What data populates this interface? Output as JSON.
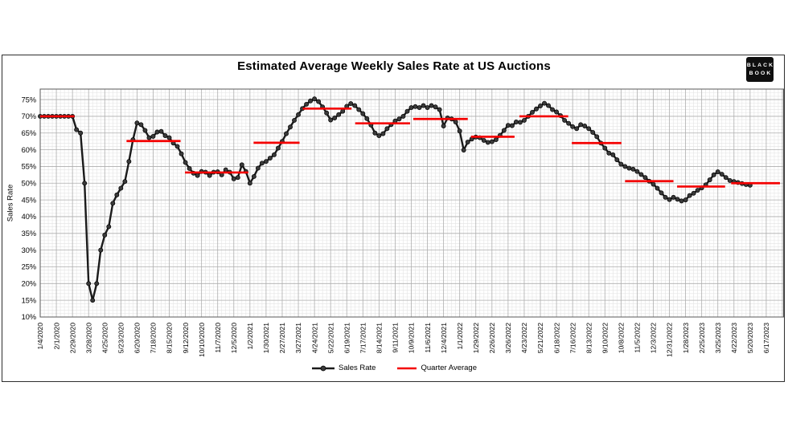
{
  "header": {
    "title": "Estimated Average Weekly Sales Rate at US Auctions"
  },
  "logo": {
    "line1": "BLACK",
    "line2": "BOOK"
  },
  "legend": {
    "sales_rate": "Sales Rate",
    "quarter_average": "Quarter Average"
  },
  "y_axis_title": "Sales Rate",
  "colors": {
    "line": "#1a1a1a",
    "marker_fill": "#3a3a3a",
    "marker_stroke": "#000000",
    "quarter_average": "#f40000",
    "grid_minor": "#e4e4e4",
    "grid_major": "#aeaeae",
    "plot_border": "#5a5a5a",
    "logo_bg": "#0f0f0f"
  },
  "chart_data": {
    "type": "line",
    "title": "Estimated Average Weekly Sales Rate at US Auctions",
    "xlabel": "",
    "ylabel": "Sales Rate",
    "ylim": [
      10,
      78.1
    ],
    "grid": "minor weekly / 1% + major 4-weekly / 5%",
    "legend_position": "bottom-center",
    "y_tick_labels": [
      "10%",
      "15%",
      "20%",
      "25%",
      "30%",
      "35%",
      "40%",
      "45%",
      "50%",
      "55%",
      "60%",
      "65%",
      "70%",
      "75%"
    ],
    "x_start_date": "1/4/2020",
    "x_interval": "weekly",
    "x_ticks_every_weeks": 4,
    "x_tick_labels": [
      "1/4/2020",
      "2/1/2020",
      "2/29/2020",
      "3/28/2020",
      "4/25/2020",
      "5/23/2020",
      "6/20/2020",
      "7/18/2020",
      "8/15/2020",
      "9/12/2020",
      "10/10/2020",
      "11/7/2020",
      "12/5/2020",
      "1/2/2021",
      "1/30/2021",
      "2/27/2021",
      "3/27/2021",
      "4/24/2021",
      "5/22/2021",
      "6/19/2021",
      "7/17/2021",
      "8/14/2021",
      "9/11/2021",
      "10/9/2021",
      "11/6/2021",
      "12/4/2021",
      "1/1/2022",
      "1/29/2022",
      "2/26/2022",
      "3/26/2022",
      "4/23/2022",
      "5/21/2022",
      "6/18/2022",
      "7/16/2022",
      "8/13/2022",
      "9/10/2022",
      "10/8/2022",
      "11/5/2022",
      "12/3/2022",
      "12/31/2022",
      "1/28/2023",
      "2/25/2023",
      "3/25/2023",
      "4/22/2023",
      "5/20/2023",
      "6/17/2023"
    ],
    "series": [
      {
        "name": "Sales Rate",
        "style": "line+markers",
        "color": "#1a1a1a",
        "values_pct": [
          70,
          70,
          70,
          70,
          70,
          70,
          70,
          70,
          70,
          66,
          65,
          50,
          20,
          15,
          20,
          30,
          34.5,
          37,
          44,
          46.5,
          48.5,
          50.5,
          56.5,
          63,
          68,
          67.5,
          65.8,
          63.6,
          64,
          65.3,
          65.5,
          64.2,
          63.6,
          62,
          61,
          58.8,
          56.2,
          54.4,
          53,
          52.3,
          53.5,
          53.3,
          52.3,
          53.3,
          53.4,
          52.5,
          54,
          53.3,
          51.3,
          51.7,
          55.5,
          53.5,
          50,
          52,
          54.5,
          56,
          56.5,
          57.5,
          58.5,
          60.5,
          62.5,
          64.8,
          66.8,
          68.8,
          70.5,
          72.3,
          73.6,
          74.6,
          75.2,
          74.4,
          72.8,
          71,
          68.9,
          69.5,
          70.5,
          71.5,
          73,
          73.8,
          73.2,
          72,
          70.8,
          69.3,
          67.4,
          65,
          64.2,
          64.8,
          66.3,
          67.5,
          68.6,
          69.2,
          70,
          71.5,
          72.6,
          72.9,
          72.6,
          73.2,
          72.6,
          73.2,
          72.8,
          72,
          67.1,
          69.5,
          69.2,
          68.3,
          65.6,
          59.9,
          62.3,
          63.2,
          63.8,
          63.6,
          62.8,
          62.2,
          62.4,
          63,
          64.3,
          65.8,
          67.3,
          67.2,
          68.3,
          68.2,
          68.8,
          70,
          71.2,
          72.2,
          73.1,
          73.9,
          73.2,
          72,
          71.3,
          70.2,
          68.8,
          67.9,
          66.9,
          66.3,
          67.5,
          67.1,
          66.3,
          65.2,
          63.9,
          62,
          60.5,
          59,
          58.5,
          57,
          55.7,
          55,
          54.5,
          54.2,
          53.5,
          52.6,
          51.7,
          50.6,
          49.7,
          48.5,
          47.1,
          45.8,
          45.1,
          45.8,
          45.2,
          44.7,
          45,
          46.3,
          47,
          47.9,
          48.6,
          49.5,
          51,
          52.5,
          53.4,
          52.7,
          51.7,
          50.8,
          50.5,
          50.2,
          49.9,
          49.6,
          49.4
        ]
      },
      {
        "name": "Quarter Average",
        "style": "horizontal-segments",
        "color": "#f40000",
        "segments": [
          {
            "start_week": 0,
            "end_week": 8.5,
            "value_pct": 70.0
          },
          {
            "start_week": 21.4,
            "end_week": 34.8,
            "value_pct": 62.6
          },
          {
            "start_week": 35.9,
            "end_week": 51.6,
            "value_pct": 53.2
          },
          {
            "start_week": 52.9,
            "end_week": 64.3,
            "value_pct": 62.1
          },
          {
            "start_week": 65.1,
            "end_week": 77.2,
            "value_pct": 72.3
          },
          {
            "start_week": 78.1,
            "end_week": 91.7,
            "value_pct": 67.9
          },
          {
            "start_week": 92.5,
            "end_week": 106.0,
            "value_pct": 69.2
          },
          {
            "start_week": 106.8,
            "end_week": 117.6,
            "value_pct": 63.9
          },
          {
            "start_week": 118.8,
            "end_week": 130.9,
            "value_pct": 70.0
          },
          {
            "start_week": 131.8,
            "end_week": 144.1,
            "value_pct": 62.0
          },
          {
            "start_week": 145.0,
            "end_week": 157.0,
            "value_pct": 50.6
          },
          {
            "start_week": 157.9,
            "end_week": 169.8,
            "value_pct": 49.0
          },
          {
            "start_week": 171.3,
            "end_week": 183.4,
            "value_pct": 50.0
          }
        ]
      }
    ]
  }
}
